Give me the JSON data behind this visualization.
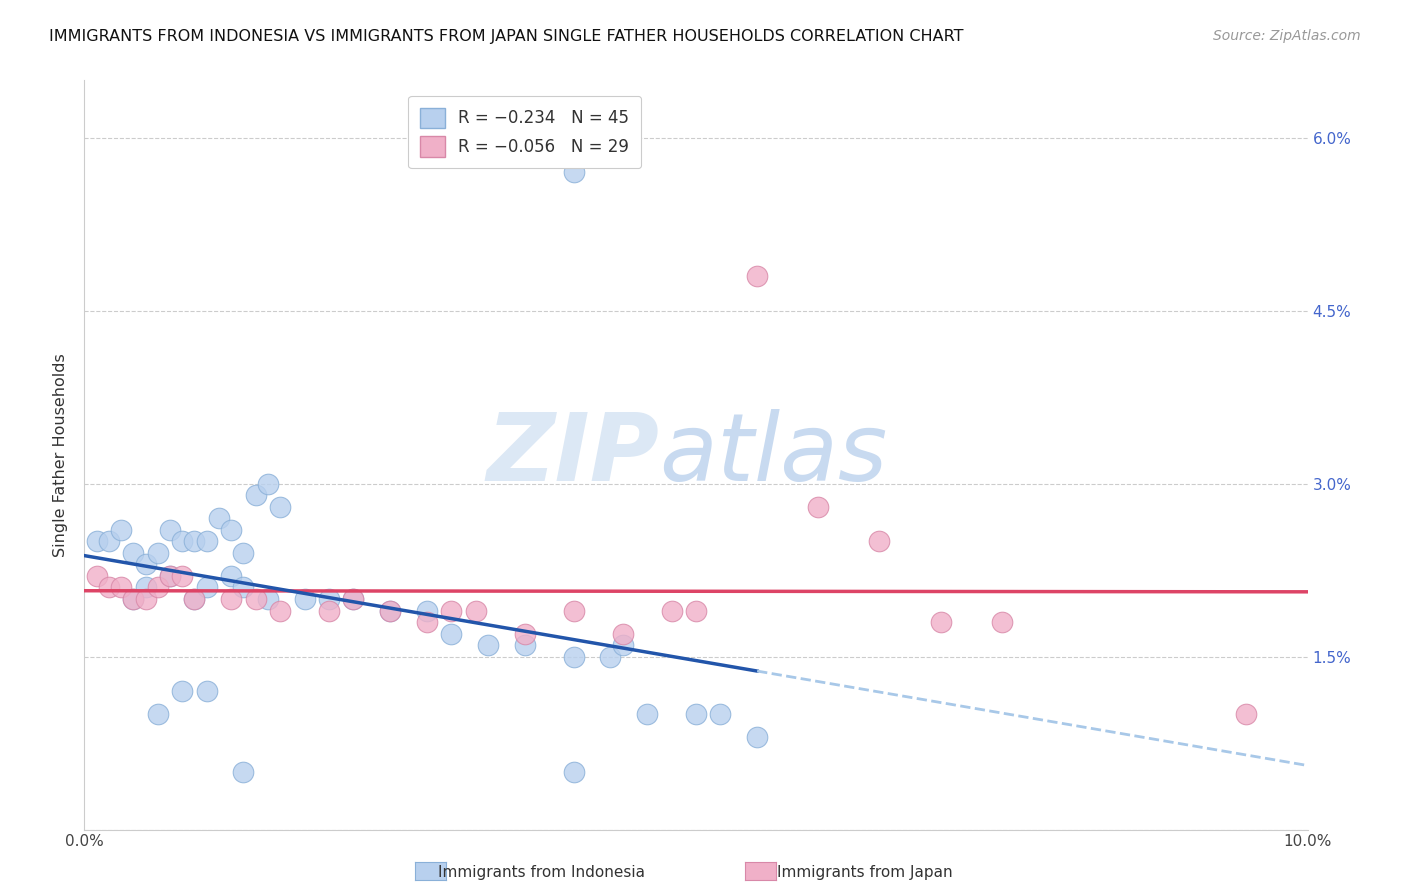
{
  "title": "IMMIGRANTS FROM INDONESIA VS IMMIGRANTS FROM JAPAN SINGLE FATHER HOUSEHOLDS CORRELATION CHART",
  "source": "Source: ZipAtlas.com",
  "ylabel": "Single Father Households",
  "xlim": [
    0.0,
    0.1
  ],
  "ylim": [
    0.0,
    0.065
  ],
  "yticks": [
    0.0,
    0.015,
    0.03,
    0.045,
    0.06
  ],
  "ytick_labels_right": [
    "",
    "1.5%",
    "3.0%",
    "4.5%",
    "6.0%"
  ],
  "xticks": [
    0.0,
    0.02,
    0.04,
    0.06,
    0.08,
    0.1
  ],
  "xtick_labels": [
    "0.0%",
    "",
    "",
    "",
    "",
    "10.0%"
  ],
  "indonesia_color": "#b8d0ee",
  "indonesia_edge": "#8ab0d8",
  "japan_color": "#f0b0c8",
  "japan_edge": "#d888a8",
  "trend_indonesia_color": "#2255aa",
  "trend_japan_color": "#dd4466",
  "trend_ext_color": "#a8c8e8",
  "right_axis_color": "#4466cc",
  "indonesia_x": [
    0.001,
    0.002,
    0.003,
    0.004,
    0.005,
    0.006,
    0.007,
    0.008,
    0.009,
    0.01,
    0.011,
    0.012,
    0.013,
    0.014,
    0.015,
    0.016,
    0.004,
    0.005,
    0.007,
    0.009,
    0.01,
    0.012,
    0.013,
    0.015,
    0.018,
    0.02,
    0.022,
    0.025,
    0.028,
    0.03,
    0.033,
    0.036,
    0.04,
    0.043,
    0.044,
    0.046,
    0.05,
    0.052,
    0.055,
    0.006,
    0.008,
    0.01,
    0.04,
    0.04,
    0.013
  ],
  "indonesia_y": [
    0.025,
    0.025,
    0.026,
    0.024,
    0.023,
    0.024,
    0.026,
    0.025,
    0.025,
    0.025,
    0.027,
    0.026,
    0.024,
    0.029,
    0.03,
    0.028,
    0.02,
    0.021,
    0.022,
    0.02,
    0.021,
    0.022,
    0.021,
    0.02,
    0.02,
    0.02,
    0.02,
    0.019,
    0.019,
    0.017,
    0.016,
    0.016,
    0.015,
    0.015,
    0.016,
    0.01,
    0.01,
    0.01,
    0.008,
    0.01,
    0.012,
    0.012,
    0.057,
    0.005,
    0.005
  ],
  "japan_x": [
    0.001,
    0.002,
    0.003,
    0.004,
    0.005,
    0.006,
    0.007,
    0.008,
    0.009,
    0.012,
    0.014,
    0.016,
    0.02,
    0.022,
    0.025,
    0.028,
    0.03,
    0.032,
    0.036,
    0.04,
    0.044,
    0.048,
    0.05,
    0.055,
    0.06,
    0.065,
    0.07,
    0.075,
    0.095
  ],
  "japan_y": [
    0.022,
    0.021,
    0.021,
    0.02,
    0.02,
    0.021,
    0.022,
    0.022,
    0.02,
    0.02,
    0.02,
    0.019,
    0.019,
    0.02,
    0.019,
    0.018,
    0.019,
    0.019,
    0.017,
    0.019,
    0.017,
    0.019,
    0.019,
    0.048,
    0.028,
    0.025,
    0.018,
    0.018,
    0.01
  ]
}
